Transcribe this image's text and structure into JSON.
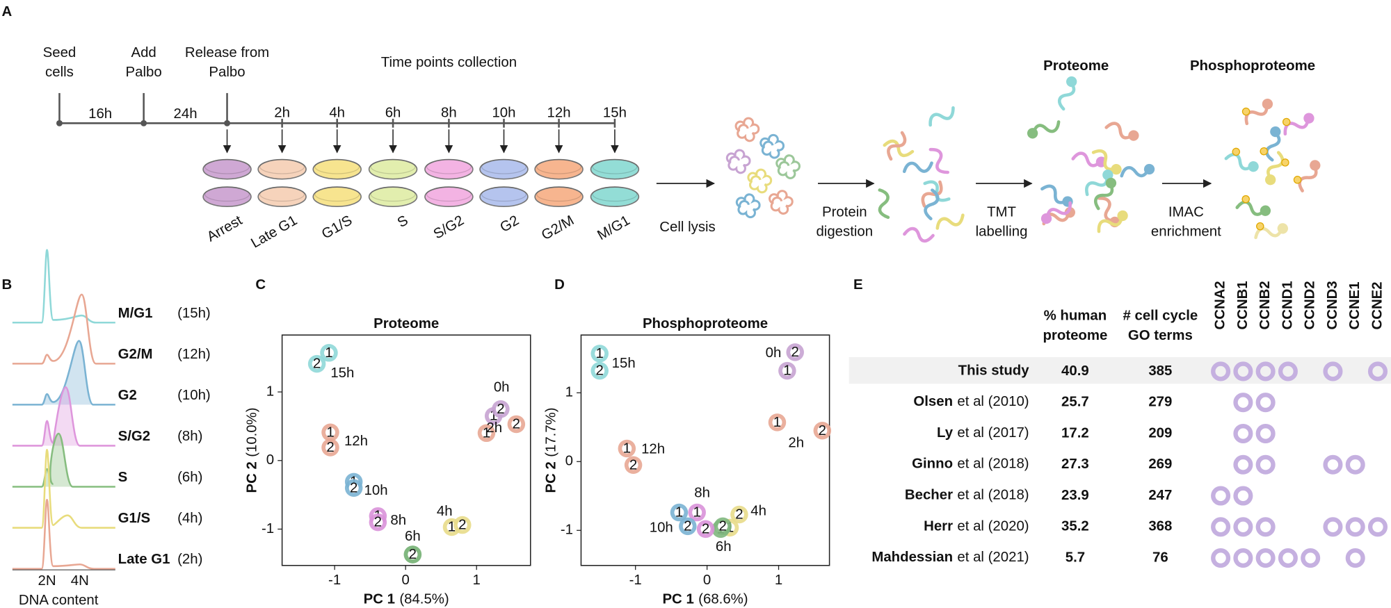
{
  "panel_a": {
    "label": "A",
    "events": [
      [
        "Seed",
        "cells"
      ],
      [
        "Add",
        "Palbo"
      ],
      [
        "Release from",
        "Palbo"
      ]
    ],
    "intervals": [
      "16h",
      "24h"
    ],
    "collection_title": "Time points collection",
    "timepoints": [
      "2h",
      "4h",
      "6h",
      "8h",
      "10h",
      "12h",
      "15h"
    ],
    "phases": [
      "Arrest",
      "Late G1",
      "G1/S",
      "S",
      "S/G2",
      "G2",
      "G2/M",
      "M/G1"
    ],
    "dish_colors": [
      "#cfa8d4",
      "#f6d3bb",
      "#f7e48f",
      "#e2eeae",
      "#f3b3e3",
      "#b5c4ee",
      "#f7b58f",
      "#93ddd6"
    ],
    "steps": [
      [
        "Cell lysis"
      ],
      [
        "Protein",
        "digestion"
      ],
      [
        "TMT",
        "labelling"
      ],
      [
        "IMAC",
        "enrichment"
      ]
    ],
    "sample_titles": [
      "Proteome",
      "Phosphoproteome"
    ]
  },
  "panel_b": {
    "label": "B",
    "rows": [
      {
        "phase": "M/G1",
        "time": "(15h)",
        "color": "#8fd8d8"
      },
      {
        "phase": "G2/M",
        "time": "(12h)",
        "color": "#e8a793"
      },
      {
        "phase": "G2",
        "time": "(10h)",
        "color": "#7ab3d3"
      },
      {
        "phase": "S/G2",
        "time": "(8h)",
        "color": "#de96dc"
      },
      {
        "phase": "S",
        "time": "(6h)",
        "color": "#86bd7f"
      },
      {
        "phase": "G1/S",
        "time": "(4h)",
        "color": "#e8dc7c"
      },
      {
        "phase": "Late G1",
        "time": "(2h)",
        "color": "#e8a793"
      }
    ],
    "peaks": [
      "2N",
      "4N"
    ],
    "xlabel": "DNA content"
  },
  "chart_data": [
    {
      "type": "scatter",
      "panel": "C",
      "title": "Proteome",
      "xlabel": "PC 1",
      "xlabel_variance": "(84.5%)",
      "ylabel": "PC 2",
      "ylabel_variance": "(10.0%)",
      "xlim": [
        -1.74,
        1.76
      ],
      "ylim": [
        -1.53,
        1.83
      ],
      "xticks": [
        -1,
        0,
        1
      ],
      "yticks": [
        -1,
        0,
        1
      ],
      "replicate_labels": [
        "1",
        "2"
      ],
      "series": [
        {
          "name": "0h",
          "color": "#c7a3d2",
          "x": [
            1.24,
            1.34
          ],
          "values": [
            0.65,
            0.75
          ]
        },
        {
          "name": "2h",
          "color": "#e8a793",
          "x": [
            1.14,
            1.56
          ],
          "values": [
            0.4,
            0.53
          ]
        },
        {
          "name": "4h",
          "color": "#e8dc8a",
          "x": [
            0.65,
            0.8
          ],
          "values": [
            -0.97,
            -0.94
          ]
        },
        {
          "name": "6h",
          "color": "#7fb77e",
          "x": [
            0.1,
            0.1
          ],
          "values": [
            -1.37,
            -1.37
          ]
        },
        {
          "name": "8h",
          "color": "#d992d9",
          "x": [
            -0.39,
            -0.39
          ],
          "values": [
            -0.81,
            -0.9
          ]
        },
        {
          "name": "10h",
          "color": "#7ab3d3",
          "x": [
            -0.73,
            -0.73
          ],
          "values": [
            -0.31,
            -0.4
          ]
        },
        {
          "name": "12h",
          "color": "#e8a793",
          "x": [
            -1.06,
            -1.06
          ],
          "values": [
            0.41,
            0.19
          ]
        },
        {
          "name": "15h",
          "color": "#8fd8d8",
          "x": [
            -1.08,
            -1.25
          ],
          "values": [
            1.57,
            1.41
          ]
        }
      ]
    },
    {
      "type": "scatter",
      "panel": "D",
      "title": "Phosphoproteome",
      "xlabel": "PC 1",
      "xlabel_variance": "(68.6%)",
      "ylabel": "PC 2",
      "ylabel_variance": "(17.7%)",
      "xlim": [
        -1.76,
        1.71
      ],
      "ylim": [
        -1.51,
        1.84
      ],
      "xticks": [
        -1,
        0,
        1
      ],
      "yticks": [
        -1,
        0,
        1
      ],
      "replicate_labels": [
        "1",
        "2"
      ],
      "series": [
        {
          "name": "0h",
          "color": "#c7a3d2",
          "x": [
            1.12,
            1.23
          ],
          "values": [
            1.32,
            1.59
          ]
        },
        {
          "name": "2h",
          "color": "#e8a793",
          "x": [
            0.98,
            1.61
          ],
          "values": [
            0.57,
            0.45
          ]
        },
        {
          "name": "4h",
          "color": "#e8dc8a",
          "x": [
            0.32,
            0.45
          ],
          "values": [
            -0.96,
            -0.77
          ]
        },
        {
          "name": "6h",
          "color": "#7fb77e",
          "x": [
            0.19,
            0.22
          ],
          "values": [
            -0.98,
            -0.94
          ]
        },
        {
          "name": "8h",
          "color": "#d992d9",
          "x": [
            -0.14,
            -0.02
          ],
          "values": [
            -0.74,
            -0.98
          ]
        },
        {
          "name": "10h",
          "color": "#7ab3d3",
          "x": [
            -0.39,
            -0.27
          ],
          "values": [
            -0.74,
            -0.94
          ]
        },
        {
          "name": "12h",
          "color": "#e8a793",
          "x": [
            -1.12,
            -1.03
          ],
          "values": [
            0.19,
            -0.05
          ]
        },
        {
          "name": "15h",
          "color": "#8fd8d8",
          "x": [
            -1.5,
            -1.5
          ],
          "values": [
            1.57,
            1.32
          ]
        }
      ]
    }
  ],
  "panel_e": {
    "label": "E",
    "columns": [
      [
        "% human",
        "proteome"
      ],
      [
        "# cell cycle",
        "GO terms"
      ]
    ],
    "genes": [
      "CCNA2",
      "CCNB1",
      "CCNB2",
      "CCND1",
      "CCND2",
      "CCND3",
      "CCNE1",
      "CCNE2"
    ],
    "circle_color": "#c5b0e0",
    "rows": [
      {
        "author": "This study",
        "proteome_pct": 40.9,
        "go_terms": 385,
        "cyclins": [
          true,
          true,
          true,
          true,
          false,
          true,
          false,
          true
        ]
      },
      {
        "author": "Olsen",
        "citation": "et al (2010)",
        "proteome_pct": 25.7,
        "go_terms": 279,
        "cyclins": [
          false,
          true,
          true,
          false,
          false,
          false,
          false,
          false
        ]
      },
      {
        "author": "Ly",
        "citation": "et al (2017)",
        "proteome_pct": 17.2,
        "go_terms": 209,
        "cyclins": [
          false,
          true,
          true,
          false,
          false,
          false,
          false,
          false
        ]
      },
      {
        "author": "Ginno",
        "citation": "et al (2018)",
        "proteome_pct": 27.3,
        "go_terms": 269,
        "cyclins": [
          false,
          true,
          true,
          false,
          false,
          true,
          true,
          false
        ]
      },
      {
        "author": "Becher",
        "citation": "et al (2018)",
        "proteome_pct": 23.9,
        "go_terms": 247,
        "cyclins": [
          true,
          true,
          false,
          false,
          false,
          false,
          false,
          false
        ]
      },
      {
        "author": "Herr",
        "citation": "et al (2020)",
        "proteome_pct": 35.2,
        "go_terms": 368,
        "cyclins": [
          true,
          true,
          true,
          false,
          false,
          true,
          true,
          true
        ]
      },
      {
        "author": "Mahdessian",
        "citation": "et al (2021)",
        "proteome_pct": 5.7,
        "go_terms": 76,
        "cyclins": [
          true,
          true,
          true,
          true,
          true,
          false,
          true,
          false
        ]
      }
    ]
  }
}
